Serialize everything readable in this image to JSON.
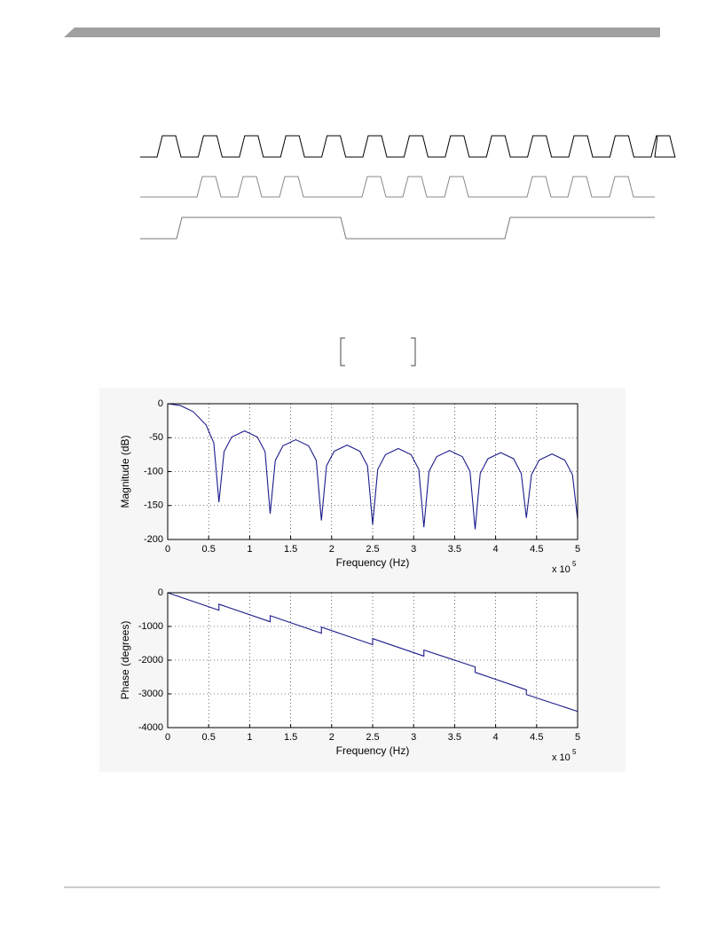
{
  "chart_data": [
    {
      "type": "line",
      "x": [
        0,
        15625,
        31250,
        46875,
        56250,
        62500,
        68750,
        78125,
        93750,
        109375,
        118750,
        125000,
        131250,
        140625,
        156250,
        171875,
        181250,
        187500,
        193750,
        203125,
        218750,
        234375,
        243750,
        250000,
        256250,
        265625,
        281250,
        296875,
        306250,
        312500,
        318750,
        328125,
        343750,
        359375,
        368750,
        375000,
        381250,
        390625,
        406250,
        421875,
        431250,
        437500,
        443750,
        453125,
        468750,
        484375,
        493750,
        500000
      ],
      "series": [
        {
          "color": "#1c1c8c",
          "values": [
            0,
            -2.7,
            -11.8,
            -31.4,
            -57.7,
            -145,
            -70.6,
            -49,
            -40,
            -49,
            -70.6,
            -162,
            -83.6,
            -62,
            -53,
            -62,
            -83.6,
            -172,
            -91.6,
            -70,
            -61,
            -70,
            -91.6,
            -178,
            -96.6,
            -75,
            -66,
            -75,
            -96.6,
            -182,
            -99.6,
            -78,
            -69,
            -78,
            -99.6,
            -185,
            -102.6,
            -81,
            -72,
            -81,
            -102.6,
            -168,
            -104.6,
            -83,
            -74,
            -83,
            -104.6,
            -170
          ]
        }
      ],
      "xlim": [
        0,
        500000
      ],
      "xticks": [
        0,
        {
          "value": 50000,
          "label": "0.5"
        },
        {
          "value": 100000,
          "label": "1"
        },
        {
          "value": 150000,
          "label": "1.5"
        },
        {
          "value": 200000,
          "label": "2"
        },
        {
          "value": 250000,
          "label": "2.5"
        },
        {
          "value": 300000,
          "label": "3"
        },
        {
          "value": 350000,
          "label": "3.5"
        },
        {
          "value": 400000,
          "label": "4"
        },
        {
          "value": 450000,
          "label": "4.5"
        },
        {
          "value": 500000,
          "label": "5"
        }
      ],
      "ylim": [
        -200,
        0
      ],
      "yticks": [
        -200,
        -150,
        -100,
        -50,
        0
      ],
      "x_label": "Frequency (Hz)",
      "y_label": "Magnitude (dB)",
      "x_multiplier": "x 10",
      "x_exponent": "5",
      "grid": true
    },
    {
      "type": "line",
      "x": [
        0,
        62500,
        62500,
        125000,
        125000,
        187500,
        187500,
        250000,
        250000,
        312500,
        312500,
        375000,
        375000,
        437500,
        437500,
        500000
      ],
      "series": [
        {
          "color": "#1c1c8c",
          "values": [
            0,
            -520,
            -340,
            -860,
            -680,
            -1200,
            -1020,
            -1540,
            -1360,
            -1880,
            -1700,
            -2200,
            -2360,
            -2880,
            -3020,
            -3520
          ]
        }
      ],
      "xlim": [
        0,
        500000
      ],
      "xticks": [
        0,
        {
          "value": 50000,
          "label": "0.5"
        },
        {
          "value": 100000,
          "label": "1"
        },
        {
          "value": 150000,
          "label": "1.5"
        },
        {
          "value": 200000,
          "label": "2"
        },
        {
          "value": 250000,
          "label": "2.5"
        },
        {
          "value": 300000,
          "label": "3"
        },
        {
          "value": 350000,
          "label": "3.5"
        },
        {
          "value": 400000,
          "label": "4"
        },
        {
          "value": 450000,
          "label": "4.5"
        },
        {
          "value": 500000,
          "label": "5"
        }
      ],
      "ylim": [
        -4000,
        0
      ],
      "yticks": [
        -4000,
        -3000,
        -2000,
        -1000,
        0
      ],
      "x_label": "Frequency (Hz)",
      "y_label": "Phase (degrees)",
      "x_multiplier": "x 10",
      "x_exponent": "5",
      "grid": true
    }
  ]
}
